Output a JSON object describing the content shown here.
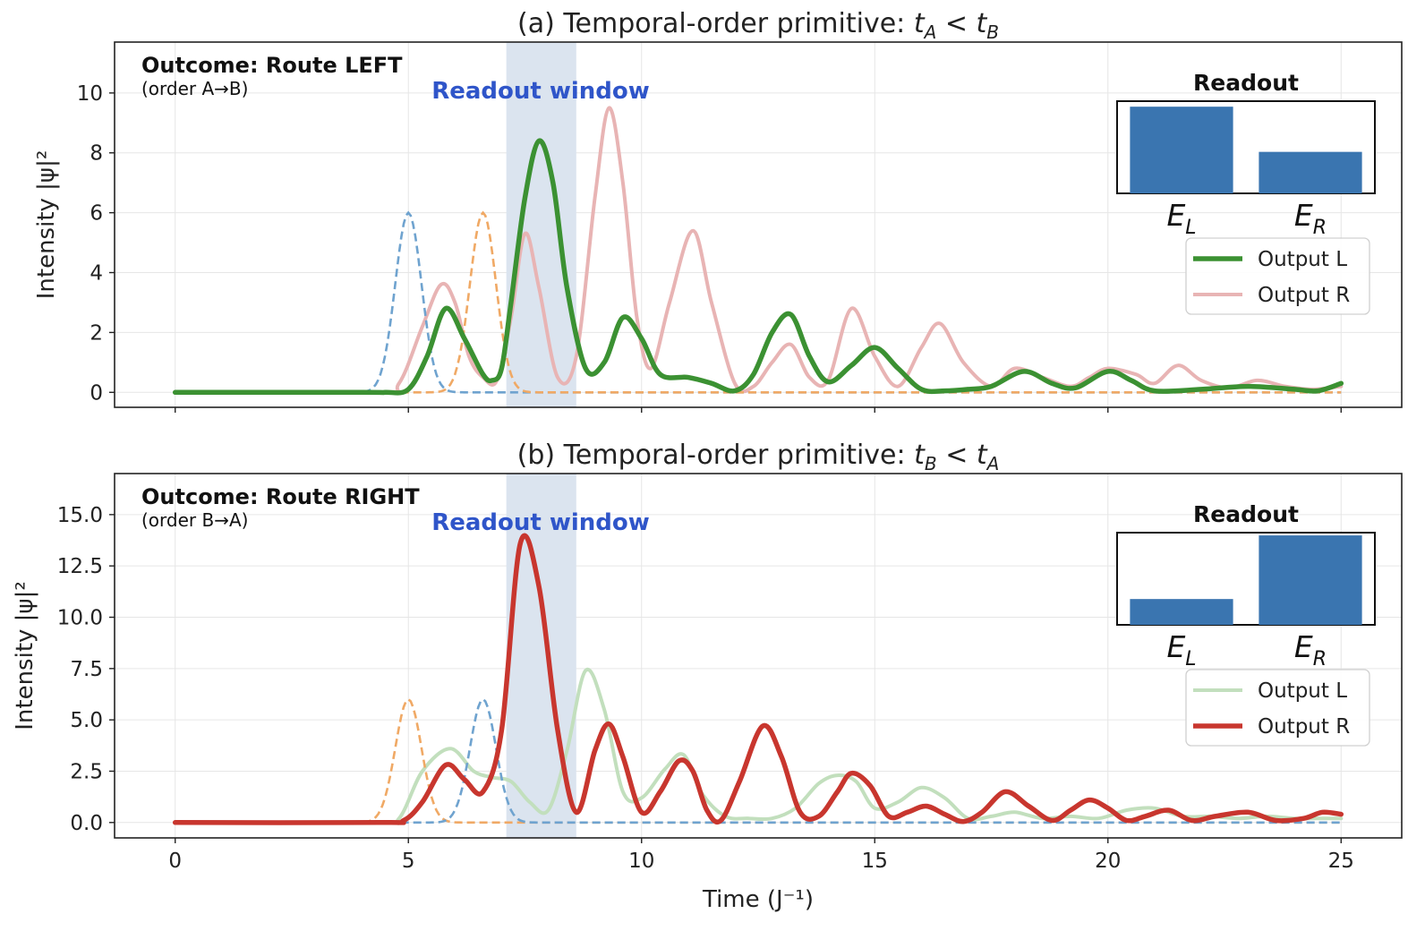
{
  "chart_data": [
    {
      "type": "line",
      "title": "(a) Temporal-order primitive: t_A < t_B",
      "title_math": {
        "prefix": "(a) Temporal-order primitive: ",
        "a": "t",
        "a_sub": "A",
        "rel": " < ",
        "b": "t",
        "b_sub": "B"
      },
      "xlabel": "",
      "ylabel": "Intensity |ψ|²",
      "xlim": [
        -1.3,
        26.3
      ],
      "ylim": [
        -0.5,
        11.7
      ],
      "xticks": [
        0,
        5,
        10,
        15,
        20,
        25
      ],
      "xtick_labels_visible": false,
      "yticks": [
        0,
        2,
        4,
        6,
        8,
        10
      ],
      "ytick_labels": [
        "0",
        "2",
        "4",
        "6",
        "8",
        "10"
      ],
      "grid": true,
      "readout_window": {
        "label": "Readout window",
        "x": [
          7.1,
          8.6
        ],
        "color": "#dbe4ef"
      },
      "outcome": {
        "title": "Outcome: Route LEFT",
        "subtitle": "(order A→B)"
      },
      "legend": {
        "position": "right",
        "entries": [
          "Output L",
          "Output R"
        ]
      },
      "inset": {
        "title": "Readout",
        "categories": [
          "E_L",
          "E_R"
        ],
        "values": [
          0.94,
          0.45
        ],
        "ylim": [
          0,
          1
        ],
        "color": "#3a75b0"
      },
      "series": [
        {
          "name": "Output L",
          "role": "main",
          "color": "#3b9132",
          "x": [
            0,
            4,
            4.5,
            5,
            5.4,
            5.8,
            6.2,
            6.6,
            6.8,
            7.0,
            7.2,
            7.5,
            7.8,
            8.1,
            8.4,
            8.8,
            9.2,
            9.6,
            10.0,
            10.4,
            11.0,
            11.5,
            12.0,
            12.4,
            12.8,
            13.2,
            13.6,
            14.0,
            14.5,
            15.0,
            15.5,
            16.0,
            16.5,
            17.0,
            17.5,
            18.2,
            18.8,
            19.3,
            20.0,
            20.5,
            21.0,
            22.0,
            23.0,
            24.0,
            24.5,
            25.0
          ],
          "y": [
            0,
            0,
            0,
            0.1,
            1.2,
            2.8,
            1.8,
            0.6,
            0.4,
            0.8,
            3.0,
            6.5,
            8.4,
            7.0,
            3.5,
            0.8,
            1.0,
            2.5,
            1.8,
            0.6,
            0.5,
            0.3,
            0.05,
            0.6,
            2.0,
            2.6,
            1.2,
            0.35,
            0.9,
            1.5,
            0.8,
            0.1,
            0.05,
            0.1,
            0.2,
            0.7,
            0.3,
            0.15,
            0.7,
            0.4,
            0.05,
            0.1,
            0.2,
            0.1,
            0.05,
            0.3
          ]
        },
        {
          "name": "Output R",
          "role": "faded",
          "color": "#e8b4b4",
          "x": [
            0,
            4.3,
            4.8,
            5.3,
            5.7,
            6.0,
            6.3,
            6.6,
            6.9,
            7.2,
            7.5,
            7.8,
            8.2,
            8.6,
            9.0,
            9.3,
            9.6,
            9.9,
            10.2,
            10.6,
            11.1,
            11.5,
            12.0,
            12.4,
            12.8,
            13.2,
            13.6,
            14.0,
            14.5,
            15.0,
            15.5,
            16.0,
            16.4,
            16.9,
            17.5,
            18.0,
            18.6,
            19.2,
            19.6,
            20.0,
            20.6,
            21.0,
            21.5,
            22.0,
            22.6,
            23.2,
            23.8,
            24.4,
            25.0
          ],
          "y": [
            0,
            0,
            0.3,
            2.2,
            3.6,
            3.0,
            1.2,
            0.5,
            0.4,
            2.5,
            5.3,
            3.5,
            0.5,
            1.2,
            6.5,
            9.5,
            7.0,
            2.5,
            0.8,
            3.0,
            5.4,
            3.0,
            0.3,
            0.2,
            1.0,
            1.6,
            0.5,
            0.4,
            2.8,
            1.2,
            0.2,
            1.5,
            2.3,
            1.0,
            0.2,
            0.8,
            0.5,
            0.2,
            0.5,
            0.8,
            0.6,
            0.3,
            0.9,
            0.4,
            0.15,
            0.4,
            0.2,
            0.1,
            0.2
          ]
        },
        {
          "name": "Pulse A",
          "role": "pulse",
          "color": "#6fa3cf",
          "center": 5.0,
          "amplitude": 6.0,
          "width": 0.28
        },
        {
          "name": "Pulse B",
          "role": "pulse",
          "color": "#f0a965",
          "center": 6.6,
          "amplitude": 6.0,
          "width": 0.28
        }
      ]
    },
    {
      "type": "line",
      "title": "(b) Temporal-order primitive: t_B < t_A",
      "title_math": {
        "prefix": "(b) Temporal-order primitive: ",
        "a": "t",
        "a_sub": "B",
        "rel": " < ",
        "b": "t",
        "b_sub": "A"
      },
      "xlabel": "Time (J⁻¹)",
      "ylabel": "Intensity |ψ|²",
      "xlim": [
        -1.3,
        26.3
      ],
      "ylim": [
        -0.75,
        17.0
      ],
      "xticks": [
        0,
        5,
        10,
        15,
        20,
        25
      ],
      "xtick_labels_visible": true,
      "xtick_labels": [
        "0",
        "5",
        "10",
        "15",
        "20",
        "25"
      ],
      "yticks": [
        0,
        2.5,
        5,
        7.5,
        10,
        12.5,
        15
      ],
      "ytick_labels": [
        "0.0",
        "2.5",
        "5.0",
        "7.5",
        "10.0",
        "12.5",
        "15.0"
      ],
      "grid": true,
      "readout_window": {
        "label": "Readout window",
        "x": [
          7.1,
          8.6
        ],
        "color": "#dbe4ef"
      },
      "outcome": {
        "title": "Outcome: Route RIGHT",
        "subtitle": "(order B→A)"
      },
      "legend": {
        "position": "right",
        "entries": [
          "Output L",
          "Output R"
        ]
      },
      "inset": {
        "title": "Readout",
        "categories": [
          "E_L",
          "E_R"
        ],
        "values": [
          0.28,
          0.97
        ],
        "ylim": [
          0,
          1
        ],
        "color": "#3a75b0"
      },
      "series": [
        {
          "name": "Output L",
          "role": "faded",
          "color": "#c2dfbd",
          "x": [
            0,
            4.3,
            4.8,
            5.3,
            5.9,
            6.4,
            6.8,
            7.2,
            7.6,
            8.0,
            8.4,
            8.8,
            9.2,
            9.6,
            10.0,
            10.5,
            10.9,
            11.3,
            11.8,
            12.3,
            12.8,
            13.3,
            13.8,
            14.2,
            14.6,
            15.0,
            15.5,
            16.0,
            16.5,
            17.0,
            17.5,
            18.0,
            18.6,
            19.2,
            19.8,
            20.4,
            21.0,
            21.6,
            22.2,
            22.8,
            23.4,
            24.0,
            24.6,
            25.0
          ],
          "y": [
            0,
            0,
            0.2,
            2.5,
            3.6,
            2.5,
            2.2,
            2.0,
            1.0,
            0.6,
            3.5,
            7.4,
            5.5,
            1.5,
            1.2,
            2.6,
            3.3,
            1.4,
            0.3,
            0.2,
            0.2,
            0.7,
            1.9,
            2.3,
            2.0,
            0.7,
            1.0,
            1.7,
            1.2,
            0.2,
            0.3,
            0.5,
            0.2,
            0.3,
            0.2,
            0.6,
            0.7,
            0.3,
            0.3,
            0.2,
            0.3,
            0.2,
            0.2,
            0.2
          ]
        },
        {
          "name": "Output R",
          "role": "main",
          "color": "#c8362e",
          "x": [
            0,
            4.4,
            4.9,
            5.3,
            5.8,
            6.2,
            6.6,
            7.0,
            7.4,
            7.8,
            8.2,
            8.6,
            9.0,
            9.3,
            9.6,
            10.0,
            10.4,
            10.8,
            11.1,
            11.4,
            11.7,
            12.1,
            12.6,
            13.0,
            13.4,
            13.8,
            14.2,
            14.5,
            14.9,
            15.3,
            15.7,
            16.1,
            16.5,
            16.9,
            17.3,
            17.8,
            18.3,
            18.8,
            19.2,
            19.6,
            20.0,
            20.4,
            20.8,
            21.3,
            21.8,
            22.3,
            23.0,
            23.6,
            24.2,
            24.6,
            25.0
          ],
          "y": [
            0,
            0,
            0.1,
            1.0,
            2.8,
            2.1,
            1.5,
            4.5,
            13.6,
            11.5,
            4.5,
            0.5,
            3.5,
            4.8,
            3.2,
            0.5,
            1.5,
            3.0,
            2.5,
            0.6,
            0.1,
            2.0,
            4.7,
            3.2,
            0.5,
            0.3,
            1.5,
            2.4,
            1.8,
            0.3,
            0.5,
            0.8,
            0.4,
            0.05,
            0.5,
            1.5,
            0.8,
            0.1,
            0.6,
            1.1,
            0.7,
            0.1,
            0.3,
            0.6,
            0.1,
            0.3,
            0.5,
            0.1,
            0.2,
            0.5,
            0.4
          ]
        },
        {
          "name": "Pulse B",
          "role": "pulse",
          "color": "#f0a965",
          "center": 5.0,
          "amplitude": 6.0,
          "width": 0.28
        },
        {
          "name": "Pulse A",
          "role": "pulse",
          "color": "#6fa3cf",
          "center": 6.6,
          "amplitude": 6.0,
          "width": 0.28
        }
      ]
    }
  ]
}
